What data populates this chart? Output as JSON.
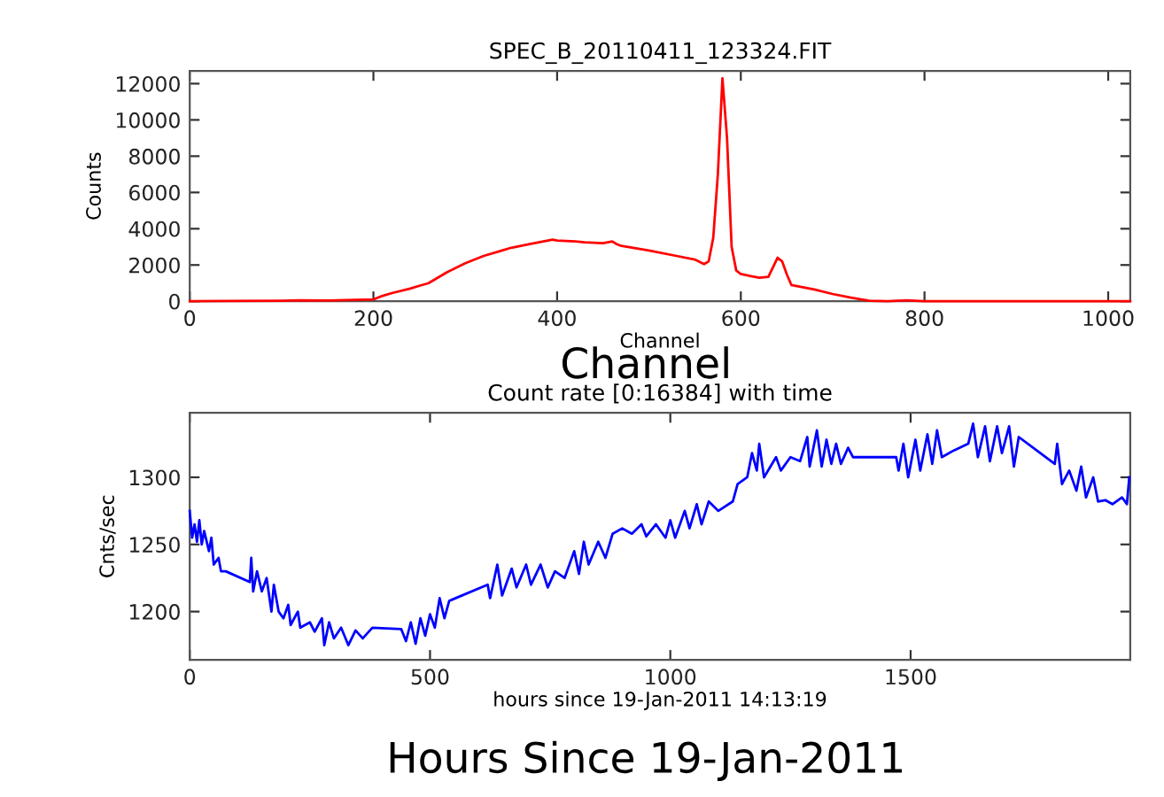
{
  "chart_data": [
    {
      "type": "line",
      "title": "SPEC_B_20110411_123324.FIT",
      "xlabel": "Channel",
      "ylabel": "Counts",
      "annotations": [
        "Channel"
      ],
      "grid": false,
      "legend": false,
      "marker": "none",
      "line_style": "solid",
      "xlim": [
        0,
        1024
      ],
      "ylim": [
        0,
        12700
      ],
      "xticks": [
        0,
        200,
        400,
        600,
        800,
        1000
      ],
      "yticks": [
        0,
        2000,
        4000,
        6000,
        8000,
        10000,
        12000
      ],
      "series": [
        {
          "color": "#ff0000",
          "x": [
            0,
            100,
            120,
            150,
            200,
            210,
            220,
            240,
            250,
            260,
            280,
            300,
            320,
            340,
            350,
            370,
            380,
            395,
            400,
            420,
            430,
            450,
            460,
            465,
            470,
            500,
            530,
            550,
            560,
            565,
            570,
            575,
            580,
            585,
            590,
            595,
            600,
            610,
            620,
            630,
            640,
            645,
            650,
            655,
            670,
            680,
            700,
            720,
            740,
            760,
            780,
            800,
            1024
          ],
          "values": [
            0,
            30,
            50,
            40,
            100,
            300,
            450,
            700,
            850,
            1000,
            1600,
            2100,
            2500,
            2800,
            2950,
            3150,
            3250,
            3400,
            3350,
            3300,
            3250,
            3200,
            3300,
            3150,
            3050,
            2800,
            2500,
            2300,
            2050,
            2200,
            3500,
            7000,
            12300,
            9000,
            3000,
            1700,
            1500,
            1400,
            1300,
            1350,
            2400,
            2200,
            1500,
            900,
            750,
            650,
            400,
            200,
            30,
            0,
            50,
            0,
            0
          ]
        }
      ]
    },
    {
      "type": "line",
      "title": "Count rate [0:16384] with time",
      "xlabel": "hours since 19-Jan-2011 14:13:19",
      "ylabel": "Cnts/sec",
      "annotations": [
        "Hours Since 19-Jan-2011"
      ],
      "grid": false,
      "legend": false,
      "marker": "none",
      "line_style": "solid",
      "xlim": [
        0,
        1957
      ],
      "ylim": [
        1164,
        1348
      ],
      "xticks": [
        0,
        500,
        1000,
        1500
      ],
      "yticks": [
        1200,
        1250,
        1300
      ],
      "series": [
        {
          "color": "#0000ff",
          "x": [
            0,
            5,
            10,
            15,
            20,
            25,
            30,
            40,
            45,
            50,
            60,
            65,
            75,
            125,
            128,
            132,
            140,
            150,
            160,
            170,
            175,
            185,
            195,
            205,
            210,
            225,
            230,
            250,
            260,
            275,
            280,
            290,
            300,
            315,
            330,
            345,
            360,
            380,
            440,
            450,
            460,
            470,
            480,
            490,
            500,
            510,
            520,
            530,
            540,
            620,
            625,
            640,
            650,
            670,
            680,
            700,
            710,
            730,
            745,
            760,
            780,
            800,
            810,
            820,
            830,
            850,
            865,
            880,
            900,
            920,
            940,
            950,
            970,
            990,
            1000,
            1010,
            1030,
            1040,
            1055,
            1065,
            1080,
            1100,
            1130,
            1140,
            1160,
            1170,
            1180,
            1185,
            1195,
            1220,
            1230,
            1250,
            1270,
            1285,
            1290,
            1305,
            1315,
            1325,
            1335,
            1345,
            1355,
            1370,
            1380,
            1470,
            1475,
            1485,
            1495,
            1510,
            1520,
            1535,
            1545,
            1555,
            1565,
            1590,
            1620,
            1630,
            1640,
            1655,
            1665,
            1680,
            1690,
            1705,
            1715,
            1725,
            1800,
            1805,
            1815,
            1830,
            1845,
            1855,
            1865,
            1880,
            1890,
            1905,
            1920,
            1940,
            1950,
            1955
          ],
          "values": [
            1275,
            1255,
            1265,
            1252,
            1268,
            1250,
            1260,
            1245,
            1255,
            1235,
            1240,
            1230,
            1230,
            1222,
            1240,
            1215,
            1230,
            1215,
            1225,
            1200,
            1220,
            1200,
            1195,
            1205,
            1190,
            1200,
            1188,
            1192,
            1185,
            1195,
            1175,
            1192,
            1180,
            1188,
            1175,
            1186,
            1180,
            1188,
            1187,
            1178,
            1192,
            1176,
            1195,
            1182,
            1198,
            1188,
            1210,
            1195,
            1208,
            1220,
            1210,
            1235,
            1212,
            1232,
            1218,
            1235,
            1220,
            1235,
            1218,
            1230,
            1225,
            1245,
            1228,
            1252,
            1235,
            1252,
            1240,
            1258,
            1262,
            1258,
            1265,
            1256,
            1265,
            1255,
            1268,
            1255,
            1275,
            1262,
            1280,
            1265,
            1282,
            1275,
            1282,
            1295,
            1300,
            1318,
            1305,
            1325,
            1300,
            1315,
            1305,
            1315,
            1312,
            1330,
            1308,
            1335,
            1308,
            1328,
            1310,
            1325,
            1310,
            1322,
            1315,
            1315,
            1305,
            1325,
            1300,
            1328,
            1305,
            1332,
            1310,
            1335,
            1315,
            1320,
            1325,
            1340,
            1315,
            1338,
            1312,
            1338,
            1318,
            1338,
            1308,
            1330,
            1310,
            1325,
            1295,
            1305,
            1290,
            1308,
            1285,
            1300,
            1282,
            1283,
            1280,
            1285,
            1280,
            1300
          ]
        }
      ]
    }
  ]
}
